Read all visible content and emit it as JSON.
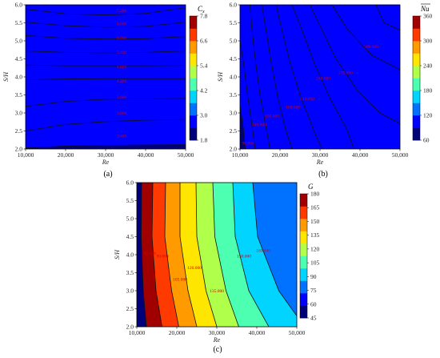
{
  "chart_data": [
    {
      "type": "heatmap",
      "panel_label": "(a)",
      "xlabel": "Re",
      "ylabel": "S/H",
      "colorbar_title": "Cx",
      "x_ticks": [
        "10,000",
        "20,000",
        "30,000",
        "40,000",
        "50,000"
      ],
      "y_ticks": [
        "2.0",
        "2.5",
        "3.0",
        "3.5",
        "4.0",
        "4.5",
        "5.0",
        "5.5",
        "6.0"
      ],
      "xlim": [
        10000,
        50000
      ],
      "ylim": [
        2.0,
        6.0
      ],
      "colorbar_ticks": [
        "1.8",
        "3.0",
        "4.2",
        "5.4",
        "6.6",
        "7.8"
      ],
      "colorbar_range": [
        1.8,
        7.8
      ],
      "contour_labels": [
        "7.200",
        "6.600",
        "6.000",
        "5.400",
        "4.800",
        "4.200",
        "3.600",
        "3.000",
        "2.400"
      ],
      "contour_levels": [
        7.2,
        6.6,
        6.0,
        5.4,
        4.8,
        4.2,
        3.6,
        3.0,
        2.4
      ],
      "contours": [
        [
          [
            10000,
            5.88
          ],
          [
            20000,
            5.75
          ],
          [
            30000,
            5.72
          ],
          [
            40000,
            5.76
          ],
          [
            50000,
            5.92
          ]
        ],
        [
          [
            10000,
            5.52
          ],
          [
            20000,
            5.42
          ],
          [
            30000,
            5.38
          ],
          [
            40000,
            5.4
          ],
          [
            50000,
            5.52
          ]
        ],
        [
          [
            10000,
            5.15
          ],
          [
            20000,
            5.07
          ],
          [
            30000,
            5.05
          ],
          [
            40000,
            5.06
          ],
          [
            50000,
            5.12
          ]
        ],
        [
          [
            10000,
            4.72
          ],
          [
            20000,
            4.68
          ],
          [
            30000,
            4.67
          ],
          [
            40000,
            4.68
          ],
          [
            50000,
            4.72
          ]
        ],
        [
          [
            10000,
            4.33
          ],
          [
            20000,
            4.31
          ],
          [
            30000,
            4.31
          ],
          [
            40000,
            4.31
          ],
          [
            50000,
            4.32
          ]
        ],
        [
          [
            10000,
            3.92
          ],
          [
            20000,
            3.94
          ],
          [
            30000,
            3.95
          ],
          [
            40000,
            3.95
          ],
          [
            50000,
            3.95
          ]
        ],
        [
          [
            10000,
            3.18
          ],
          [
            20000,
            3.32
          ],
          [
            30000,
            3.38
          ],
          [
            40000,
            3.39
          ],
          [
            50000,
            3.4
          ]
        ],
        [
          [
            10000,
            2.5
          ],
          [
            20000,
            2.68
          ],
          [
            30000,
            2.76
          ],
          [
            40000,
            2.8
          ],
          [
            50000,
            2.82
          ]
        ],
        [
          [
            10000,
            2.03
          ],
          [
            20000,
            2.08
          ],
          [
            30000,
            2.1
          ],
          [
            40000,
            2.11
          ],
          [
            50000,
            2.12
          ]
        ]
      ],
      "colors": [
        "#00007a",
        "#0000ff",
        "#0072ff",
        "#00d4ff",
        "#4dffb0",
        "#b0ff4a",
        "#ffe600",
        "#ff9a00",
        "#ff3a00",
        "#a00000"
      ]
    },
    {
      "type": "heatmap",
      "panel_label": "(b)",
      "xlabel": "Re",
      "ylabel": "S/H",
      "colorbar_title": "Nu",
      "x_ticks": [
        "10,000",
        "20,000",
        "30,000",
        "40,000",
        "50,000"
      ],
      "y_ticks": [
        "2.0",
        "2.5",
        "3.0",
        "3.5",
        "4.0",
        "4.5",
        "5.0",
        "5.5",
        "6.0"
      ],
      "xlim": [
        10000,
        50000
      ],
      "ylim": [
        2.0,
        6.0
      ],
      "colorbar_ticks": [
        "60",
        "120",
        "180",
        "240",
        "300",
        "360"
      ],
      "colorbar_range": [
        60,
        360
      ],
      "contour_labels": [
        "300.000",
        "270.000",
        "240.000",
        "210.000",
        "180.000",
        "150.000",
        "120.000",
        "90.000"
      ],
      "contour_levels": [
        330,
        300,
        270,
        240,
        210,
        180,
        150,
        120,
        90
      ],
      "contours": [
        [
          [
            44000,
            6.0
          ],
          [
            46000,
            5.5
          ],
          [
            50000,
            5.3
          ]
        ],
        [
          [
            33000,
            6.0
          ],
          [
            37000,
            5.3
          ],
          [
            43000,
            4.6
          ],
          [
            50000,
            4.2
          ]
        ],
        [
          [
            27500,
            6.0
          ],
          [
            30500,
            5.3
          ],
          [
            34000,
            4.5
          ],
          [
            39500,
            3.6
          ],
          [
            45000,
            3.0
          ],
          [
            50000,
            2.7
          ]
        ],
        [
          [
            23000,
            6.0
          ],
          [
            25500,
            5.3
          ],
          [
            28500,
            4.4
          ],
          [
            32500,
            3.4
          ],
          [
            36500,
            2.6
          ],
          [
            38500,
            2.0
          ]
        ],
        [
          [
            19000,
            6.0
          ],
          [
            20500,
            5.3
          ],
          [
            22500,
            4.4
          ],
          [
            25000,
            3.5
          ],
          [
            28500,
            2.5
          ],
          [
            30500,
            2.0
          ]
        ],
        [
          [
            15500,
            6.0
          ],
          [
            16500,
            5.3
          ],
          [
            17800,
            4.4
          ],
          [
            19500,
            3.4
          ],
          [
            21500,
            2.5
          ],
          [
            23000,
            2.0
          ]
        ],
        [
          [
            12500,
            6.0
          ],
          [
            13000,
            5.3
          ],
          [
            13800,
            4.5
          ],
          [
            15000,
            3.5
          ],
          [
            16500,
            2.6
          ],
          [
            17500,
            2.0
          ]
        ],
        [
          [
            10000,
            5.0
          ],
          [
            11000,
            4.3
          ],
          [
            12000,
            3.4
          ],
          [
            13200,
            2.5
          ],
          [
            13800,
            2.0
          ]
        ],
        [
          [
            10000,
            3.2
          ],
          [
            10800,
            2.6
          ],
          [
            11300,
            2.0
          ]
        ]
      ],
      "colors": [
        "#00007a",
        "#0000ff",
        "#0072ff",
        "#00d4ff",
        "#4dffb0",
        "#b0ff4a",
        "#ffe600",
        "#ff9a00",
        "#ff3a00",
        "#a00000"
      ]
    },
    {
      "type": "heatmap",
      "panel_label": "(c)",
      "xlabel": "Re",
      "ylabel": "S/H",
      "colorbar_title": "G",
      "x_ticks": [
        "10,000",
        "20,000",
        "30,000",
        "40,000",
        "50,000"
      ],
      "y_ticks": [
        "2.0",
        "2.5",
        "3.0",
        "3.5",
        "4.0",
        "4.5",
        "5.0",
        "5.5",
        "6.0"
      ],
      "xlim": [
        10000,
        50000
      ],
      "ylim": [
        2.0,
        6.0
      ],
      "colorbar_ticks": [
        "45",
        "60",
        "75",
        "90",
        "105",
        "120",
        "135",
        "150",
        "165",
        "180"
      ],
      "colorbar_range": [
        45,
        180
      ],
      "contour_labels": [
        "60.000",
        "90.000",
        "105.000",
        "120.000",
        "135.000",
        "150.000",
        "165.000"
      ],
      "contour_levels": [
        60,
        75,
        90,
        105,
        120,
        135,
        150,
        165
      ],
      "contours": [
        [
          [
            11200,
            6.0
          ],
          [
            11100,
            4.5
          ],
          [
            11600,
            3.0
          ],
          [
            12400,
            2.0
          ]
        ],
        [
          [
            14000,
            6.0
          ],
          [
            13800,
            4.5
          ],
          [
            14800,
            3.0
          ],
          [
            16300,
            2.0
          ]
        ],
        [
          [
            17200,
            6.0
          ],
          [
            17000,
            4.5
          ],
          [
            18700,
            3.0
          ],
          [
            20500,
            2.0
          ]
        ],
        [
          [
            20800,
            6.0
          ],
          [
            20800,
            4.5
          ],
          [
            22800,
            3.0
          ],
          [
            25000,
            2.0
          ]
        ],
        [
          [
            24800,
            6.0
          ],
          [
            25000,
            4.5
          ],
          [
            27300,
            3.0
          ],
          [
            30000,
            2.0
          ]
        ],
        [
          [
            29000,
            6.0
          ],
          [
            29500,
            4.5
          ],
          [
            32300,
            3.0
          ],
          [
            35500,
            2.0
          ]
        ],
        [
          [
            34000,
            6.0
          ],
          [
            34600,
            4.5
          ],
          [
            38000,
            3.0
          ],
          [
            43000,
            2.0
          ]
        ],
        [
          [
            39000,
            6.0
          ],
          [
            40200,
            4.5
          ],
          [
            45500,
            3.0
          ],
          [
            50000,
            2.3
          ]
        ]
      ],
      "colors": [
        "#00007a",
        "#0000ff",
        "#0072ff",
        "#00d4ff",
        "#4dffb0",
        "#b0ff4a",
        "#ffe600",
        "#ff9a00",
        "#ff3a00",
        "#a00000"
      ]
    }
  ]
}
